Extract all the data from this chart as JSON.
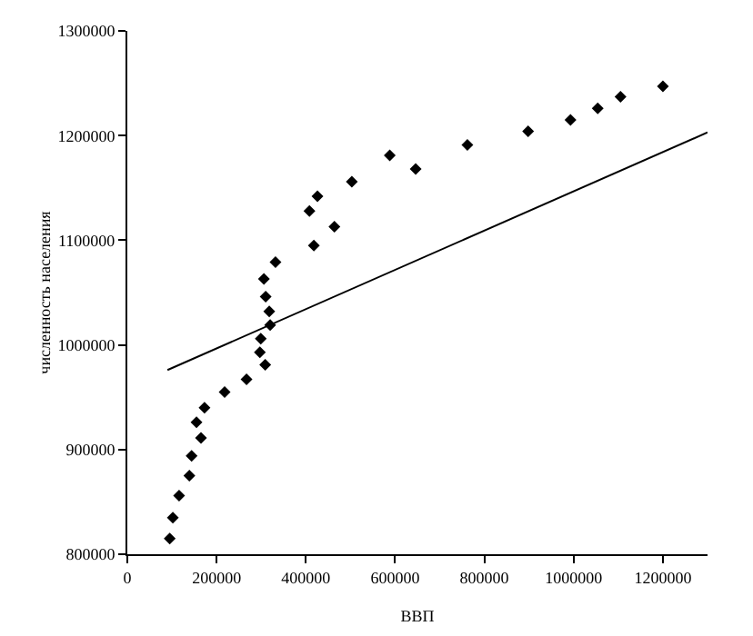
{
  "chart_data": {
    "type": "scatter",
    "xlabel": "ВВП",
    "ylabel": "численность населения",
    "marker": "diamond",
    "grid": false,
    "xlim": [
      0,
      1300000
    ],
    "xticks": [
      0,
      200000,
      400000,
      600000,
      800000,
      1000000,
      1200000
    ],
    "ylim": [
      800000,
      1300000
    ],
    "yticks": [
      800000,
      900000,
      1000000,
      1100000,
      1200000,
      1300000
    ],
    "series": [
      {
        "color": "#000000",
        "x": [
          95000,
          102000,
          116000,
          139000,
          144000,
          165000,
          155000,
          173000,
          218000,
          267000,
          309000,
          297000,
          299000,
          320000,
          318000,
          310000,
          306000,
          332000,
          418000,
          464000,
          408000,
          426000,
          503000,
          646000,
          588000,
          762000,
          898000,
          993000,
          1054000,
          1105000,
          1200000
        ],
        "values": [
          815000,
          835000,
          856000,
          875000,
          894000,
          911000,
          926000,
          940000,
          955000,
          967000,
          981000,
          993000,
          1006000,
          1019000,
          1032000,
          1046000,
          1063000,
          1079000,
          1095000,
          1113000,
          1128000,
          1142000,
          1156000,
          1168000,
          1181000,
          1191000,
          1204000,
          1215000,
          1226000,
          1237000,
          1247000
        ]
      },
      {
        "type": "line",
        "marker": "none",
        "color": "#000000",
        "x": [
          90000,
          1300000
        ],
        "values": [
          976000,
          1203000
        ]
      }
    ]
  }
}
